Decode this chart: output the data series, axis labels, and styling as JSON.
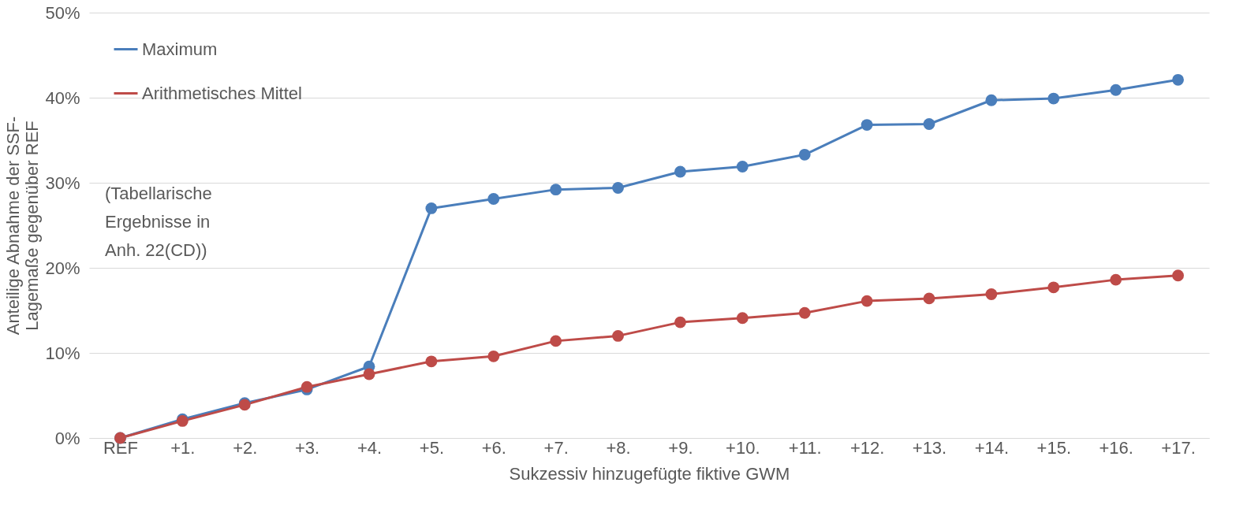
{
  "chart_data": {
    "type": "line",
    "xlabel": "Sukzessiv hinzugefügte fiktive GWM",
    "ylabel": "Anteilige Abnahme der SSF-\nLagemaße gegenüber REF",
    "categories": [
      "REF",
      "+1.",
      "+2.",
      "+3.",
      "+4.",
      "+5.",
      "+6.",
      "+7.",
      "+8.",
      "+9.",
      "+10.",
      "+11.",
      "+12.",
      "+13.",
      "+14.",
      "+15.",
      "+16.",
      "+17."
    ],
    "series": [
      {
        "name": "Maximum",
        "color": "#4a7ebb",
        "values": [
          0,
          2.2,
          4.1,
          5.7,
          8.4,
          27.0,
          28.1,
          29.2,
          29.4,
          31.3,
          31.9,
          33.3,
          36.8,
          36.9,
          39.7,
          39.9,
          40.9,
          42.1
        ]
      },
      {
        "name": "Arithmetisches Mittel",
        "color": "#be4b48",
        "values": [
          0,
          2.0,
          3.9,
          6.0,
          7.5,
          9.0,
          9.6,
          11.4,
          12.0,
          13.6,
          14.1,
          14.7,
          16.1,
          16.4,
          16.9,
          17.7,
          18.6,
          19.1
        ]
      }
    ],
    "ylim": [
      0,
      50
    ],
    "yticks": [
      {
        "value": 0,
        "label": "0%"
      },
      {
        "value": 10,
        "label": "10%"
      },
      {
        "value": 20,
        "label": "20%"
      },
      {
        "value": 30,
        "label": "30%"
      },
      {
        "value": 40,
        "label": "40%"
      },
      {
        "value": 50,
        "label": "50%"
      }
    ],
    "grid": "y",
    "legend": "top left",
    "marker": "circle",
    "line_style": "solid",
    "annotations": [
      "(Tabellarische\nErgebnisse in\nAnh. 22(CD))"
    ]
  }
}
